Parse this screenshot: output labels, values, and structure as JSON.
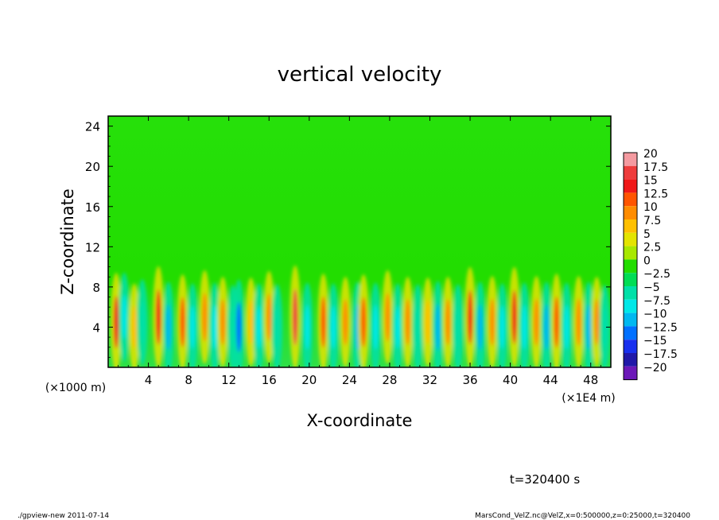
{
  "chart_data": {
    "type": "heatmap",
    "title": "vertical velocity",
    "xlabel": "X-coordinate",
    "ylabel": "Z-coordinate",
    "x_unit_left": "(×1000 m)",
    "x_unit_right": "(×1E4 m)",
    "xlim": [
      0,
      50
    ],
    "ylim": [
      0,
      25
    ],
    "x_ticks": [
      4,
      8,
      12,
      16,
      20,
      24,
      28,
      32,
      36,
      40,
      44,
      48
    ],
    "y_ticks": [
      4,
      8,
      12,
      16,
      20,
      24
    ],
    "colorbar": {
      "labels": [
        "20",
        "17.5",
        "15",
        "12.5",
        "10",
        "7.5",
        "5",
        "2.5",
        "0",
        "−2.5",
        "−5",
        "−7.5",
        "−10",
        "−12.5",
        "−15",
        "−17.5",
        "−20"
      ],
      "colors": [
        "#f49aa0",
        "#ee3c3c",
        "#f01818",
        "#ff5500",
        "#ff8c00",
        "#ffc000",
        "#e4e400",
        "#a8e800",
        "#22dd00",
        "#00dd55",
        "#00e0a8",
        "#00e8e8",
        "#00b8f0",
        "#0070ff",
        "#1830ee",
        "#2018a8",
        "#6c18b8"
      ]
    },
    "cells": [
      {
        "x": 0.8,
        "z": 4.5,
        "v": 14
      },
      {
        "x": 1.6,
        "z": 5,
        "v": -8
      },
      {
        "x": 2.6,
        "z": 4,
        "v": 7
      },
      {
        "x": 3.4,
        "z": 4.5,
        "v": -6
      },
      {
        "x": 5.0,
        "z": 5,
        "v": 16
      },
      {
        "x": 6.0,
        "z": 4,
        "v": -9
      },
      {
        "x": 7.4,
        "z": 4.5,
        "v": 12
      },
      {
        "x": 8.4,
        "z": 4,
        "v": -7
      },
      {
        "x": 9.6,
        "z": 5,
        "v": 11
      },
      {
        "x": 10.6,
        "z": 4,
        "v": -8
      },
      {
        "x": 11.4,
        "z": 4.5,
        "v": 9
      },
      {
        "x": 12.4,
        "z": 4,
        "v": -5
      },
      {
        "x": 13.0,
        "z": 4,
        "v": -12
      },
      {
        "x": 14.2,
        "z": 4.5,
        "v": 8
      },
      {
        "x": 15.0,
        "z": 4,
        "v": -7
      },
      {
        "x": 16.0,
        "z": 5,
        "v": 10
      },
      {
        "x": 16.8,
        "z": 4,
        "v": -6
      },
      {
        "x": 18.6,
        "z": 5,
        "v": 17
      },
      {
        "x": 19.8,
        "z": 4,
        "v": -8
      },
      {
        "x": 21.4,
        "z": 4.5,
        "v": 13
      },
      {
        "x": 22.4,
        "z": 4,
        "v": -7
      },
      {
        "x": 23.6,
        "z": 4.5,
        "v": 9
      },
      {
        "x": 24.8,
        "z": 4,
        "v": -9
      },
      {
        "x": 25.4,
        "z": 4.5,
        "v": 12
      },
      {
        "x": 26.6,
        "z": 4,
        "v": -8
      },
      {
        "x": 27.8,
        "z": 5,
        "v": 11
      },
      {
        "x": 28.8,
        "z": 4,
        "v": -7
      },
      {
        "x": 29.8,
        "z": 4.5,
        "v": 9
      },
      {
        "x": 30.8,
        "z": 4,
        "v": -6
      },
      {
        "x": 31.8,
        "z": 4.5,
        "v": 8
      },
      {
        "x": 32.8,
        "z": 4,
        "v": -10
      },
      {
        "x": 33.8,
        "z": 4.5,
        "v": 9
      },
      {
        "x": 34.8,
        "z": 4,
        "v": -6
      },
      {
        "x": 36.0,
        "z": 5,
        "v": 15
      },
      {
        "x": 37.0,
        "z": 4,
        "v": -9
      },
      {
        "x": 38.2,
        "z": 4.5,
        "v": 10
      },
      {
        "x": 39.2,
        "z": 4,
        "v": -7
      },
      {
        "x": 40.4,
        "z": 5,
        "v": 15
      },
      {
        "x": 41.4,
        "z": 4,
        "v": -8
      },
      {
        "x": 42.6,
        "z": 4.5,
        "v": 10
      },
      {
        "x": 43.6,
        "z": 4,
        "v": -9
      },
      {
        "x": 44.6,
        "z": 4.5,
        "v": 13
      },
      {
        "x": 45.6,
        "z": 4,
        "v": -8
      },
      {
        "x": 46.8,
        "z": 4.5,
        "v": 10
      },
      {
        "x": 47.8,
        "z": 4,
        "v": -9
      },
      {
        "x": 48.6,
        "z": 4.5,
        "v": 9
      },
      {
        "x": 49.4,
        "z": 4,
        "v": -5
      }
    ]
  },
  "time_label": "t=320400 s",
  "footer": {
    "left": "./gpview-new   2011-07-14",
    "right": "MarsCond_VelZ.nc@VelZ,x=0:500000,z=0:25000,t=320400"
  }
}
